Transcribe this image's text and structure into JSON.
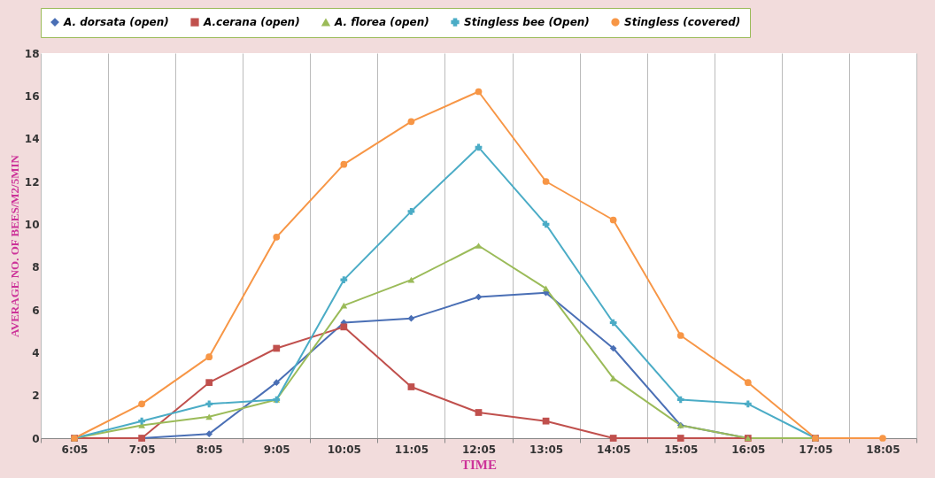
{
  "chart_data": {
    "type": "line",
    "xlabel": "TIME",
    "ylabel": "AVERAGE NO. OF BEES/M2/5MIN",
    "categories": [
      "6:05",
      "7:05",
      "8:05",
      "9:05",
      "10:05",
      "11:05",
      "12:05",
      "13:05",
      "14:05",
      "15:05",
      "16:05",
      "17:05",
      "18:05"
    ],
    "series": [
      {
        "name": "A. dorsata (open)",
        "color": "#4a6fb5",
        "marker": "diamond",
        "values": [
          0,
          0,
          0.2,
          2.6,
          5.4,
          5.6,
          6.6,
          6.8,
          4.2,
          0.6,
          0,
          0,
          null
        ]
      },
      {
        "name": "A.cerana (open)",
        "color": "#c0504d",
        "marker": "square",
        "values": [
          0,
          0,
          2.6,
          4.2,
          5.2,
          2.4,
          1.2,
          0.8,
          0,
          0,
          0,
          0,
          null
        ]
      },
      {
        "name": "A. florea (open)",
        "color": "#9bbb59",
        "marker": "triangle",
        "values": [
          0,
          0.6,
          1.0,
          1.8,
          6.2,
          7.4,
          9.0,
          7.0,
          2.8,
          0.6,
          0,
          0,
          null
        ]
      },
      {
        "name": "Stingless bee (Open)",
        "color": "#4bacc6",
        "marker": "cross",
        "values": [
          0,
          0.8,
          1.6,
          1.8,
          7.4,
          10.6,
          13.6,
          10.0,
          5.4,
          1.8,
          1.6,
          0,
          null
        ]
      },
      {
        "name": "Stingless (covered)",
        "color": "#f79646",
        "marker": "circle",
        "values": [
          0,
          1.6,
          3.8,
          9.4,
          12.8,
          14.8,
          16.2,
          12.0,
          10.2,
          4.8,
          2.6,
          0,
          0
        ]
      }
    ],
    "ylim": [
      0,
      18
    ],
    "yticks": [
      0,
      2,
      4,
      6,
      8,
      10,
      12,
      14,
      16,
      18
    ],
    "grid": "x",
    "legend": "top",
    "line_style": "solid"
  }
}
